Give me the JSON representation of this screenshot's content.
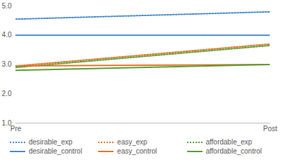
{
  "chart_data": {
    "type": "line",
    "categories": [
      "Pre",
      "Post"
    ],
    "ylim": [
      1,
      5
    ],
    "yticks": [
      1,
      2,
      3,
      4,
      5
    ],
    "grid": false,
    "legend": "bottom",
    "series": [
      {
        "name": "desirable_exp",
        "color": "#4b8bcb",
        "line_style": "dotted",
        "values": [
          4.55,
          4.8
        ]
      },
      {
        "name": "easy_exp",
        "color": "#e0782a",
        "line_style": "dotted",
        "values": [
          2.95,
          3.7
        ]
      },
      {
        "name": "affordable_exp",
        "color": "#5c9e3a",
        "line_style": "dotted",
        "values": [
          2.9,
          3.65
        ]
      },
      {
        "name": "desirable_control",
        "color": "#4b8bcb",
        "line_style": "solid",
        "values": [
          4.0,
          4.0
        ]
      },
      {
        "name": "easy_control",
        "color": "#e0782a",
        "line_style": "solid",
        "values": [
          2.95,
          3.0
        ]
      },
      {
        "name": "affordable_control",
        "color": "#5c9e3a",
        "line_style": "solid",
        "values": [
          2.8,
          3.0
        ]
      }
    ]
  }
}
